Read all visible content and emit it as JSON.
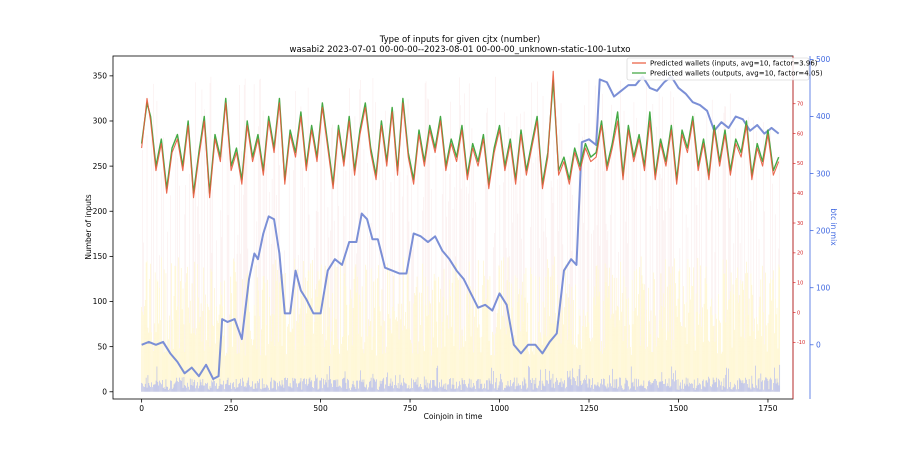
{
  "chart_data": {
    "type": "line",
    "title": "Type of inputs for given cjtx (number)",
    "subtitle": "wasabi2 2023-07-01 00-00-00--2023-08-01 00-00-00_unknown-static-100-1utxo",
    "xlabel": "Coinjoin in time",
    "ylabel": "Number of inputs",
    "y2label": "btc in mix",
    "xlim": [
      -80,
      1820
    ],
    "ylim": [
      -8,
      372
    ],
    "y2lim": [
      -95,
      506
    ],
    "y3lim": [
      -29,
      86
    ],
    "x_ticks": [
      0,
      250,
      500,
      750,
      1000,
      1250,
      1500,
      1750
    ],
    "y_ticks": [
      0,
      50,
      100,
      150,
      200,
      250,
      300,
      350
    ],
    "y2_ticks": [
      0,
      100,
      200,
      300,
      400,
      500
    ],
    "y3_ticks": [
      -10,
      0,
      10,
      20,
      30,
      40,
      50,
      60,
      70
    ],
    "grid": false,
    "legend_position": "top-right",
    "colors": {
      "inputs": "#e8593c",
      "outputs": "#3aa43a",
      "btc": "#7b8fd6",
      "bars_blue": "#6b7fff",
      "bars_yellow": "#ffe680",
      "right_axis_inner": "#d62728",
      "right_axis_outer": "#4169e1"
    },
    "series": [
      {
        "name": "Predicted wallets (inputs, avg=10, factor=3.96)",
        "axis": "left",
        "x": [
          0,
          15,
          25,
          40,
          55,
          70,
          85,
          100,
          115,
          130,
          145,
          160,
          175,
          190,
          205,
          220,
          235,
          250,
          265,
          280,
          295,
          310,
          325,
          340,
          355,
          370,
          385,
          400,
          415,
          430,
          445,
          460,
          475,
          490,
          505,
          520,
          535,
          550,
          565,
          580,
          595,
          610,
          625,
          640,
          655,
          670,
          685,
          700,
          715,
          730,
          745,
          760,
          775,
          790,
          805,
          820,
          835,
          850,
          865,
          880,
          895,
          910,
          925,
          940,
          955,
          970,
          985,
          1000,
          1015,
          1030,
          1045,
          1060,
          1075,
          1090,
          1105,
          1120,
          1135,
          1150,
          1165,
          1180,
          1195,
          1210,
          1225,
          1240,
          1255,
          1270,
          1285,
          1300,
          1315,
          1330,
          1345,
          1360,
          1375,
          1390,
          1405,
          1420,
          1435,
          1450,
          1465,
          1480,
          1495,
          1510,
          1525,
          1540,
          1555,
          1570,
          1585,
          1600,
          1615,
          1630,
          1645,
          1660,
          1675,
          1690,
          1705,
          1720,
          1735,
          1750,
          1765,
          1780
        ],
        "values": [
          270,
          325,
          300,
          245,
          275,
          220,
          265,
          280,
          245,
          295,
          215,
          260,
          300,
          215,
          280,
          255,
          320,
          245,
          265,
          230,
          295,
          255,
          280,
          240,
          300,
          265,
          320,
          230,
          285,
          260,
          305,
          245,
          290,
          255,
          315,
          270,
          225,
          290,
          250,
          300,
          240,
          285,
          315,
          265,
          235,
          295,
          250,
          310,
          240,
          320,
          260,
          230,
          285,
          250,
          290,
          265,
          300,
          245,
          275,
          255,
          290,
          235,
          270,
          250,
          280,
          225,
          265,
          290,
          245,
          275,
          230,
          285,
          240,
          270,
          300,
          225,
          260,
          355,
          240,
          255,
          230,
          265,
          245,
          270,
          255,
          260,
          295,
          245,
          270,
          300,
          235,
          290,
          255,
          280,
          245,
          300,
          235,
          275,
          250,
          290,
          230,
          285,
          265,
          300,
          245,
          275,
          235,
          290,
          250,
          285,
          240,
          275,
          260,
          295,
          235,
          270,
          250,
          285,
          240,
          255
        ]
      },
      {
        "name": "Predicted wallets (outputs, avg=10, factor=4.05)",
        "axis": "left",
        "x": [
          0,
          15,
          25,
          40,
          55,
          70,
          85,
          100,
          115,
          130,
          145,
          160,
          175,
          190,
          205,
          220,
          235,
          250,
          265,
          280,
          295,
          310,
          325,
          340,
          355,
          370,
          385,
          400,
          415,
          430,
          445,
          460,
          475,
          490,
          505,
          520,
          535,
          550,
          565,
          580,
          595,
          610,
          625,
          640,
          655,
          670,
          685,
          700,
          715,
          730,
          745,
          760,
          775,
          790,
          805,
          820,
          835,
          850,
          865,
          880,
          895,
          910,
          925,
          940,
          955,
          970,
          985,
          1000,
          1015,
          1030,
          1045,
          1060,
          1075,
          1090,
          1105,
          1120,
          1135,
          1150,
          1165,
          1180,
          1195,
          1210,
          1225,
          1240,
          1255,
          1270,
          1285,
          1300,
          1315,
          1330,
          1345,
          1360,
          1375,
          1390,
          1405,
          1420,
          1435,
          1450,
          1465,
          1480,
          1495,
          1510,
          1525,
          1540,
          1555,
          1570,
          1585,
          1600,
          1615,
          1630,
          1645,
          1660,
          1675,
          1690,
          1705,
          1720,
          1735,
          1750,
          1765,
          1780
        ],
        "values": [
          275,
          320,
          305,
          250,
          280,
          225,
          270,
          285,
          250,
          300,
          220,
          265,
          305,
          220,
          285,
          260,
          325,
          250,
          270,
          235,
          300,
          260,
          285,
          245,
          305,
          270,
          325,
          235,
          290,
          265,
          310,
          250,
          295,
          260,
          320,
          275,
          230,
          295,
          255,
          305,
          245,
          290,
          320,
          270,
          240,
          300,
          255,
          315,
          245,
          325,
          265,
          235,
          290,
          255,
          295,
          270,
          305,
          250,
          280,
          260,
          295,
          240,
          275,
          255,
          285,
          230,
          270,
          295,
          250,
          280,
          235,
          290,
          245,
          275,
          305,
          230,
          265,
          345,
          245,
          260,
          235,
          270,
          250,
          275,
          260,
          265,
          300,
          250,
          275,
          310,
          240,
          295,
          260,
          285,
          250,
          310,
          240,
          280,
          255,
          295,
          235,
          290,
          270,
          305,
          250,
          280,
          240,
          295,
          255,
          290,
          245,
          280,
          265,
          300,
          240,
          275,
          255,
          290,
          245,
          260
        ]
      },
      {
        "name": "btc in mix",
        "axis": "right",
        "x": [
          0,
          20,
          40,
          60,
          80,
          100,
          120,
          140,
          160,
          180,
          200,
          215,
          225,
          240,
          260,
          280,
          300,
          315,
          325,
          340,
          355,
          370,
          385,
          400,
          415,
          430,
          445,
          460,
          480,
          500,
          520,
          540,
          560,
          580,
          600,
          615,
          630,
          645,
          660,
          680,
          700,
          720,
          740,
          760,
          780,
          800,
          820,
          840,
          860,
          880,
          900,
          920,
          940,
          960,
          980,
          1000,
          1020,
          1040,
          1060,
          1080,
          1100,
          1120,
          1140,
          1160,
          1180,
          1200,
          1215,
          1230,
          1250,
          1270,
          1280,
          1300,
          1320,
          1340,
          1360,
          1380,
          1400,
          1420,
          1440,
          1460,
          1480,
          1500,
          1520,
          1540,
          1560,
          1580,
          1600,
          1620,
          1640,
          1660,
          1680,
          1700,
          1720,
          1740,
          1760,
          1780
        ],
        "values": [
          0,
          5,
          0,
          5,
          -15,
          -30,
          -50,
          -40,
          -55,
          -35,
          -60,
          -55,
          45,
          40,
          45,
          10,
          115,
          160,
          150,
          195,
          225,
          220,
          160,
          55,
          55,
          130,
          95,
          80,
          55,
          55,
          130,
          150,
          140,
          180,
          180,
          230,
          220,
          185,
          185,
          135,
          130,
          125,
          125,
          195,
          190,
          180,
          190,
          165,
          150,
          130,
          115,
          90,
          65,
          70,
          60,
          90,
          70,
          0,
          -15,
          0,
          0,
          -15,
          5,
          20,
          130,
          150,
          140,
          355,
          360,
          350,
          465,
          460,
          435,
          445,
          455,
          455,
          470,
          450,
          445,
          460,
          470,
          450,
          440,
          425,
          420,
          410,
          375,
          390,
          380,
          400,
          395,
          375,
          385,
          370,
          380,
          370
        ]
      }
    ]
  }
}
